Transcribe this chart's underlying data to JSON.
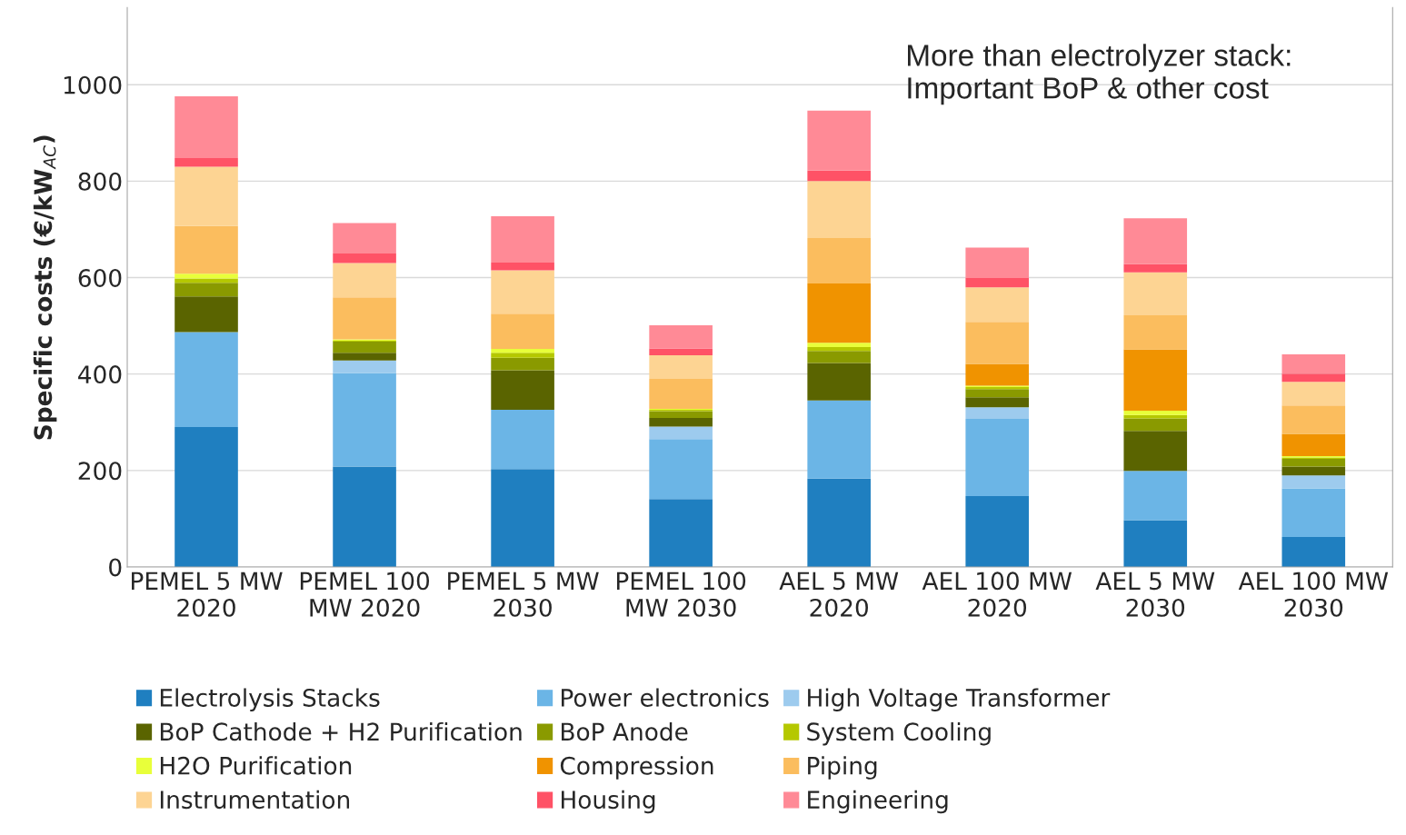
{
  "chart_data": {
    "type": "bar",
    "stacked": true,
    "ylabel": "Specific costs (€/kW$_{AC}$)",
    "categories": [
      "PEMEL 5 MW\n2020",
      "PEMEL 100\nMW 2020",
      "PEMEL 5 MW\n2030",
      "PEMEL 100\nMW 2030",
      "AEL 5 MW\n2020",
      "AEL 100 MW\n2020",
      "AEL 5 MW\n2030",
      "AEL 100 MW\n2030"
    ],
    "series": [
      {
        "name": "Electrolysis Stacks",
        "color": "#1f7fc0",
        "values": [
          290,
          208,
          203,
          141,
          183,
          147,
          97,
          62
        ]
      },
      {
        "name": "Power electronics",
        "color": "#6bb5e6",
        "values": [
          197,
          194,
          123,
          124,
          162,
          160,
          102,
          101
        ]
      },
      {
        "name": "High Voltage Transformer",
        "color": "#9dcbee",
        "values": [
          0,
          26,
          0,
          26,
          0,
          24,
          0,
          27
        ]
      },
      {
        "name": "BoP Cathode + H2 Purification",
        "color": "#5a6400",
        "values": [
          74,
          16,
          82,
          18,
          78,
          21,
          83,
          18
        ]
      },
      {
        "name": "BoP Anode",
        "color": "#8a9a00",
        "values": [
          28,
          23,
          26,
          14,
          25,
          17,
          26,
          16
        ]
      },
      {
        "name": "System Cooling",
        "color": "#b5c800",
        "values": [
          9,
          2,
          10,
          3,
          8,
          4,
          7,
          3
        ]
      },
      {
        "name": "H2O Purification",
        "color": "#e8ff3a",
        "values": [
          10,
          3,
          8,
          2,
          9,
          3,
          9,
          3
        ]
      },
      {
        "name": "Compression",
        "color": "#f09300",
        "values": [
          0,
          0,
          0,
          0,
          123,
          45,
          127,
          46
        ]
      },
      {
        "name": "Piping",
        "color": "#fbbd5e",
        "values": [
          99,
          87,
          73,
          62,
          94,
          87,
          71,
          59
        ]
      },
      {
        "name": "Instrumentation",
        "color": "#fdd493",
        "values": [
          123,
          71,
          90,
          49,
          118,
          72,
          89,
          49
        ]
      },
      {
        "name": "Housing",
        "color": "#ff5266",
        "values": [
          18,
          20,
          16,
          14,
          22,
          19,
          17,
          17
        ]
      },
      {
        "name": "Engineering",
        "color": "#ff8a96",
        "values": [
          128,
          63,
          96,
          48,
          124,
          63,
          95,
          40
        ]
      }
    ],
    "ylim": [
      0,
      1160
    ],
    "yticks": [
      0,
      200,
      400,
      600,
      800,
      1000
    ],
    "grid": "y",
    "legend": "bottom",
    "annotations": [
      "More than electrolyzer stack:\nImportant BoP & other cost"
    ]
  }
}
